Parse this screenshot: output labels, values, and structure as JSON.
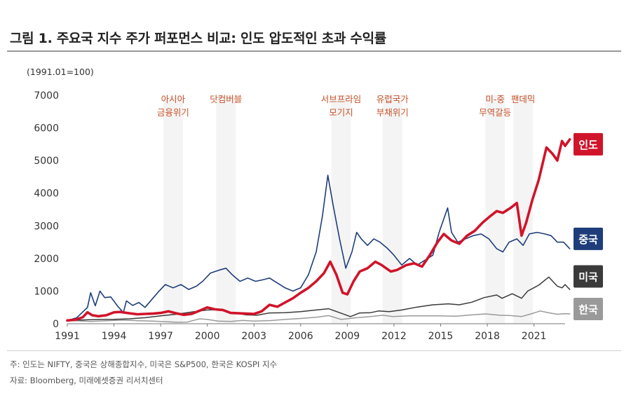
{
  "title": "그림 1. 주요국 지수 주가 퍼포먼스 비교: 인도 압도적인 초과 수익률",
  "footnote_1": "주: 인도는 NIFTY, 중국은 상해종합지수, 미국은 S&P500, 한국은 KOSPI 지수",
  "footnote_2": "자료: Bloomberg, 미래에셋증권 리서치센터",
  "colors": {
    "india": "#d0142a",
    "china": "#1e3d7a",
    "us": "#3a3a3a",
    "korea": "#9a9a9a",
    "event": "#c8542a"
  },
  "chart_data": {
    "type": "line",
    "title": "그림 1. 주요국 지수 주가 퍼포먼스 비교: 인도 압도적인 초과 수익률",
    "ylabel": "(1991.01=100)",
    "xlabel": "",
    "xlim": [
      1991,
      2023
    ],
    "ylim": [
      0,
      7000
    ],
    "yticks": [
      0,
      1000,
      2000,
      3000,
      4000,
      5000,
      6000,
      7000
    ],
    "xticks": [
      "1991",
      "1994",
      "1997",
      "2000",
      "2003",
      "2006",
      "2009",
      "2012",
      "2015",
      "2018",
      "2021"
    ],
    "events": [
      {
        "year": 1997.8,
        "lines": [
          "아시아",
          "금융위기"
        ]
      },
      {
        "year": 2001.2,
        "lines": [
          "닷컴버블"
        ]
      },
      {
        "year": 2008.6,
        "lines": [
          "서브프라임",
          "모기지"
        ]
      },
      {
        "year": 2011.9,
        "lines": [
          "유럽국가",
          "부채위기"
        ]
      },
      {
        "year": 2018.5,
        "lines": [
          "미-중",
          "무역갈등"
        ]
      },
      {
        "year": 2020.3,
        "lines": [
          "팬데믹"
        ]
      }
    ],
    "series": [
      {
        "name": "인도",
        "key": "india",
        "width": 3.6,
        "points": [
          [
            1991.0,
            100
          ],
          [
            1991.5,
            120
          ],
          [
            1992.0,
            200
          ],
          [
            1992.3,
            350
          ],
          [
            1992.6,
            260
          ],
          [
            1993.0,
            230
          ],
          [
            1993.5,
            260
          ],
          [
            1994.0,
            350
          ],
          [
            1994.4,
            360
          ],
          [
            1995.0,
            320
          ],
          [
            1995.5,
            290
          ],
          [
            1996.0,
            300
          ],
          [
            1996.5,
            310
          ],
          [
            1997.0,
            330
          ],
          [
            1997.5,
            380
          ],
          [
            1998.0,
            320
          ],
          [
            1998.5,
            270
          ],
          [
            1999.0,
            300
          ],
          [
            1999.5,
            400
          ],
          [
            2000.0,
            500
          ],
          [
            2000.5,
            440
          ],
          [
            2001.0,
            420
          ],
          [
            2001.5,
            330
          ],
          [
            2002.0,
            320
          ],
          [
            2002.5,
            310
          ],
          [
            2003.0,
            300
          ],
          [
            2003.5,
            380
          ],
          [
            2004.0,
            580
          ],
          [
            2004.5,
            520
          ],
          [
            2005.0,
            650
          ],
          [
            2005.5,
            780
          ],
          [
            2006.0,
            950
          ],
          [
            2006.5,
            1100
          ],
          [
            2007.0,
            1300
          ],
          [
            2007.5,
            1550
          ],
          [
            2007.9,
            1900
          ],
          [
            2008.3,
            1500
          ],
          [
            2008.7,
            950
          ],
          [
            2009.0,
            900
          ],
          [
            2009.4,
            1300
          ],
          [
            2009.8,
            1600
          ],
          [
            2010.3,
            1700
          ],
          [
            2010.8,
            1900
          ],
          [
            2011.2,
            1800
          ],
          [
            2011.8,
            1600
          ],
          [
            2012.2,
            1650
          ],
          [
            2012.8,
            1800
          ],
          [
            2013.3,
            1850
          ],
          [
            2013.8,
            1750
          ],
          [
            2014.3,
            2100
          ],
          [
            2014.8,
            2500
          ],
          [
            2015.2,
            2750
          ],
          [
            2015.7,
            2550
          ],
          [
            2016.2,
            2450
          ],
          [
            2016.7,
            2700
          ],
          [
            2017.2,
            2850
          ],
          [
            2017.7,
            3100
          ],
          [
            2018.2,
            3300
          ],
          [
            2018.6,
            3450
          ],
          [
            2019.0,
            3400
          ],
          [
            2019.5,
            3550
          ],
          [
            2019.9,
            3700
          ],
          [
            2020.2,
            2700
          ],
          [
            2020.5,
            3100
          ],
          [
            2020.9,
            3800
          ],
          [
            2021.3,
            4400
          ],
          [
            2021.8,
            5400
          ],
          [
            2022.2,
            5200
          ],
          [
            2022.5,
            5000
          ],
          [
            2022.8,
            5600
          ],
          [
            2023.0,
            5450
          ],
          [
            2023.3,
            5650
          ]
        ]
      },
      {
        "name": "중국",
        "key": "china",
        "width": 1.6,
        "points": [
          [
            1991.0,
            100
          ],
          [
            1991.6,
            180
          ],
          [
            1992.3,
            500
          ],
          [
            1992.5,
            950
          ],
          [
            1992.8,
            550
          ],
          [
            1993.1,
            1000
          ],
          [
            1993.4,
            800
          ],
          [
            1993.8,
            820
          ],
          [
            1994.2,
            560
          ],
          [
            1994.6,
            340
          ],
          [
            1994.8,
            700
          ],
          [
            1995.2,
            560
          ],
          [
            1995.6,
            650
          ],
          [
            1996.0,
            500
          ],
          [
            1996.5,
            780
          ],
          [
            1996.9,
            1000
          ],
          [
            1997.3,
            1200
          ],
          [
            1997.8,
            1100
          ],
          [
            1998.3,
            1200
          ],
          [
            1998.8,
            1050
          ],
          [
            1999.3,
            1150
          ],
          [
            1999.7,
            1300
          ],
          [
            2000.2,
            1550
          ],
          [
            2000.8,
            1650
          ],
          [
            2001.2,
            1700
          ],
          [
            2001.6,
            1500
          ],
          [
            2002.1,
            1300
          ],
          [
            2002.6,
            1400
          ],
          [
            2003.1,
            1300
          ],
          [
            2003.6,
            1350
          ],
          [
            2004.0,
            1400
          ],
          [
            2004.5,
            1250
          ],
          [
            2005.0,
            1100
          ],
          [
            2005.5,
            1000
          ],
          [
            2006.0,
            1100
          ],
          [
            2006.5,
            1500
          ],
          [
            2007.0,
            2200
          ],
          [
            2007.4,
            3300
          ],
          [
            2007.75,
            4550
          ],
          [
            2008.1,
            3600
          ],
          [
            2008.5,
            2600
          ],
          [
            2008.9,
            1700
          ],
          [
            2009.3,
            2200
          ],
          [
            2009.6,
            2800
          ],
          [
            2009.9,
            2600
          ],
          [
            2010.3,
            2400
          ],
          [
            2010.7,
            2600
          ],
          [
            2011.1,
            2500
          ],
          [
            2011.6,
            2300
          ],
          [
            2012.0,
            2100
          ],
          [
            2012.5,
            1800
          ],
          [
            2013.0,
            2000
          ],
          [
            2013.5,
            1800
          ],
          [
            2014.0,
            1950
          ],
          [
            2014.5,
            2100
          ],
          [
            2014.9,
            2800
          ],
          [
            2015.45,
            3550
          ],
          [
            2015.7,
            2800
          ],
          [
            2016.1,
            2500
          ],
          [
            2016.6,
            2600
          ],
          [
            2017.1,
            2700
          ],
          [
            2017.6,
            2750
          ],
          [
            2018.1,
            2600
          ],
          [
            2018.6,
            2300
          ],
          [
            2019.0,
            2200
          ],
          [
            2019.4,
            2500
          ],
          [
            2019.9,
            2600
          ],
          [
            2020.3,
            2400
          ],
          [
            2020.7,
            2750
          ],
          [
            2021.2,
            2800
          ],
          [
            2021.7,
            2750
          ],
          [
            2022.1,
            2700
          ],
          [
            2022.5,
            2500
          ],
          [
            2022.9,
            2500
          ],
          [
            2023.3,
            2300
          ]
        ]
      },
      {
        "name": "미국",
        "key": "us",
        "width": 1.5,
        "points": [
          [
            1991.0,
            100
          ],
          [
            1992.0,
            115
          ],
          [
            1993.0,
            130
          ],
          [
            1994.0,
            135
          ],
          [
            1995.0,
            150
          ],
          [
            1996.0,
            185
          ],
          [
            1997.0,
            240
          ],
          [
            1998.0,
            290
          ],
          [
            1999.0,
            360
          ],
          [
            2000.0,
            420
          ],
          [
            2000.7,
            430
          ],
          [
            2001.5,
            350
          ],
          [
            2002.5,
            270
          ],
          [
            2003.2,
            260
          ],
          [
            2004.0,
            330
          ],
          [
            2005.0,
            340
          ],
          [
            2006.0,
            370
          ],
          [
            2007.0,
            420
          ],
          [
            2007.8,
            460
          ],
          [
            2008.5,
            340
          ],
          [
            2009.2,
            220
          ],
          [
            2009.8,
            330
          ],
          [
            2010.5,
            340
          ],
          [
            2011.0,
            390
          ],
          [
            2011.7,
            370
          ],
          [
            2012.5,
            420
          ],
          [
            2013.5,
            510
          ],
          [
            2014.5,
            580
          ],
          [
            2015.5,
            610
          ],
          [
            2016.2,
            580
          ],
          [
            2017.0,
            660
          ],
          [
            2017.8,
            800
          ],
          [
            2018.6,
            880
          ],
          [
            2018.95,
            780
          ],
          [
            2019.6,
            920
          ],
          [
            2020.2,
            780
          ],
          [
            2020.6,
            1000
          ],
          [
            2021.3,
            1180
          ],
          [
            2021.95,
            1430
          ],
          [
            2022.5,
            1150
          ],
          [
            2022.8,
            1100
          ],
          [
            2023.0,
            1200
          ],
          [
            2023.3,
            1050
          ]
        ]
      },
      {
        "name": "한국",
        "key": "korea",
        "width": 1.5,
        "points": [
          [
            1991.0,
            100
          ],
          [
            1991.8,
            85
          ],
          [
            1992.5,
            70
          ],
          [
            1993.5,
            90
          ],
          [
            1994.5,
            110
          ],
          [
            1995.5,
            95
          ],
          [
            1996.5,
            80
          ],
          [
            1997.5,
            60
          ],
          [
            1998.0,
            45
          ],
          [
            1998.7,
            50
          ],
          [
            1999.5,
            150
          ],
          [
            2000.0,
            130
          ],
          [
            2000.7,
            80
          ],
          [
            2001.5,
            70
          ],
          [
            2002.3,
            100
          ],
          [
            2003.0,
            80
          ],
          [
            2004.0,
            95
          ],
          [
            2005.0,
            130
          ],
          [
            2006.0,
            160
          ],
          [
            2007.0,
            200
          ],
          [
            2007.8,
            250
          ],
          [
            2008.6,
            130
          ],
          [
            2009.5,
            180
          ],
          [
            2010.5,
            220
          ],
          [
            2011.3,
            260
          ],
          [
            2011.9,
            220
          ],
          [
            2013.0,
            240
          ],
          [
            2014.0,
            240
          ],
          [
            2015.0,
            240
          ],
          [
            2016.0,
            230
          ],
          [
            2017.0,
            270
          ],
          [
            2017.9,
            300
          ],
          [
            2018.8,
            260
          ],
          [
            2019.5,
            250
          ],
          [
            2020.2,
            220
          ],
          [
            2020.8,
            300
          ],
          [
            2021.4,
            390
          ],
          [
            2022.0,
            330
          ],
          [
            2022.5,
            290
          ],
          [
            2023.0,
            310
          ],
          [
            2023.3,
            300
          ]
        ]
      }
    ],
    "legend": [
      {
        "label": "인도",
        "key": "india",
        "value": 5500
      },
      {
        "label": "중국",
        "key": "china",
        "value": 2600
      },
      {
        "label": "미국",
        "key": "us",
        "value": 1450
      },
      {
        "label": "한국",
        "key": "korea",
        "value": 450
      }
    ]
  }
}
